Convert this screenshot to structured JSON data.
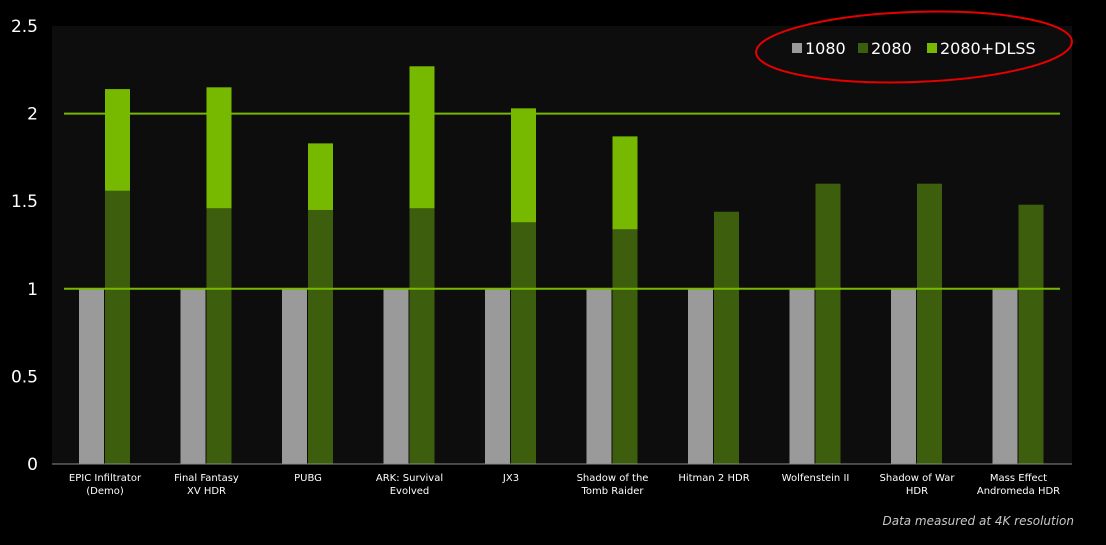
{
  "chart_data": {
    "type": "bar",
    "title": "",
    "xlabel": "",
    "ylabel": "",
    "ylim": [
      0,
      2.5
    ],
    "yticks": [
      "0",
      "0.5",
      "1",
      "1.5",
      "2",
      "2.5"
    ],
    "categories": [
      [
        "EPIC Infiltrator",
        "(Demo)"
      ],
      [
        "Final Fantasy",
        "XV HDR"
      ],
      [
        "PUBG"
      ],
      [
        "ARK: Survival",
        "Evolved"
      ],
      [
        "JX3"
      ],
      [
        "Shadow of the",
        "Tomb Raider"
      ],
      [
        "Hitman 2 HDR"
      ],
      [
        "Wolfenstein II"
      ],
      [
        "Shadow of War",
        "HDR"
      ],
      [
        "Mass Effect",
        "Andromeda HDR"
      ]
    ],
    "series": [
      {
        "name": "1080",
        "color": "#9a9a9a",
        "values": [
          1,
          1,
          1,
          1,
          1,
          1,
          1,
          1,
          1,
          1
        ]
      },
      {
        "name": "2080",
        "color": "#3d5e0c",
        "values": [
          1.56,
          1.46,
          1.45,
          1.46,
          1.38,
          1.34,
          1.44,
          1.6,
          1.6,
          1.48
        ]
      },
      {
        "name": "2080+DLSS",
        "color": "#76b900",
        "values": [
          2.14,
          2.15,
          1.83,
          2.27,
          2.03,
          1.87,
          null,
          null,
          null,
          null
        ]
      }
    ],
    "reference_lines": [
      1,
      2
    ],
    "reference_line_color": "#76b900",
    "legend_position": "top-right",
    "annotation_ellipse_color": "#e60000",
    "footnote": "Data measured at 4K resolution"
  }
}
